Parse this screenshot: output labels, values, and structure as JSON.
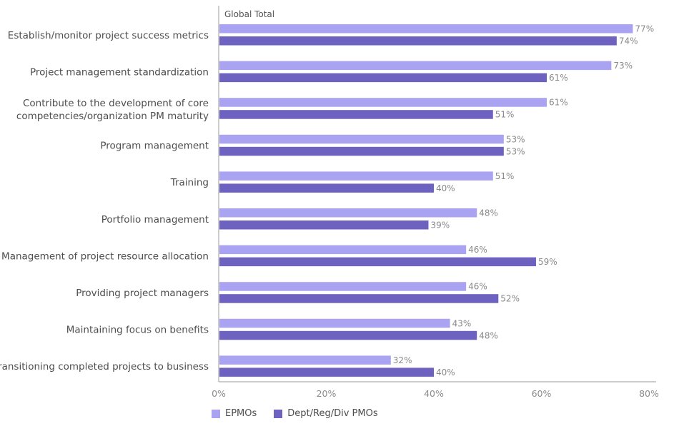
{
  "chart_data": {
    "type": "bar",
    "orientation": "horizontal",
    "subtitle": "Global Total",
    "categories": [
      "Establish/monitor project success metrics",
      "Project management standardization",
      "Contribute to the development of core competencies/organization PM maturity",
      "Program management",
      "Training",
      "Portfolio management",
      "Management of project resource allocation",
      "Providing project managers",
      "Maintaining focus on benefits",
      "Transitioning completed projects to business"
    ],
    "category_lines": [
      [
        "Establish/monitor project success metrics"
      ],
      [
        "Project management standardization"
      ],
      [
        "Contribute to the development of core",
        "competencies/organization PM maturity"
      ],
      [
        "Program management"
      ],
      [
        "Training"
      ],
      [
        "Portfolio management"
      ],
      [
        "Management of project resource allocation"
      ],
      [
        "Providing project managers"
      ],
      [
        "Maintaining focus on benefits"
      ],
      [
        "Transitioning completed projects to business"
      ]
    ],
    "series": [
      {
        "name": "EPMOs",
        "color": "#a9a3f2",
        "values": [
          77,
          73,
          61,
          53,
          51,
          48,
          46,
          46,
          43,
          32
        ]
      },
      {
        "name": "Dept/Reg/Div PMOs",
        "color": "#6e62c0",
        "values": [
          74,
          61,
          51,
          53,
          40,
          39,
          59,
          52,
          48,
          40
        ]
      }
    ],
    "x_ticks": [
      "0%",
      "20%",
      "40%",
      "60%",
      "80%"
    ],
    "xlim": [
      0,
      80
    ],
    "value_suffix": "%",
    "grid": false,
    "legend_position": "bottom-left"
  }
}
